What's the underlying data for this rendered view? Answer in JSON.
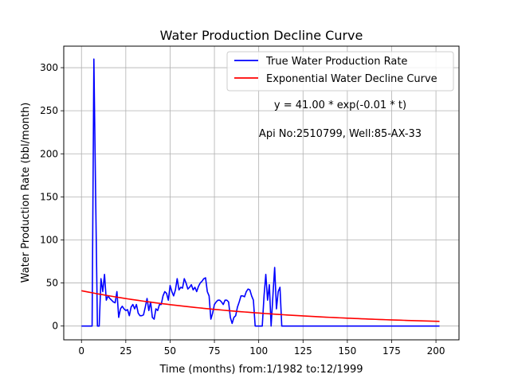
{
  "chart_data": {
    "type": "line",
    "title": "Water Production Decline Curve",
    "xlabel": "Time (months) from:1/1982 to:12/1999",
    "ylabel": "Water Production Rate (bbl/month)",
    "xlim": [
      -10,
      213
    ],
    "ylim": [
      -16,
      325
    ],
    "xticks": [
      0,
      25,
      50,
      75,
      100,
      125,
      150,
      175,
      200
    ],
    "yticks": [
      0,
      50,
      100,
      150,
      200,
      250,
      300
    ],
    "grid": true,
    "legend_position": "top-right",
    "annotations": [
      "y = 41.00 * exp(-0.01 * t)",
      "Api No:2510799, Well:85-AX-33"
    ],
    "series": [
      {
        "name": "True Water Production Rate",
        "color": "#0000ff",
        "x": [
          0,
          1,
          2,
          3,
          4,
          5,
          6,
          7,
          8,
          9,
          10,
          11,
          12,
          13,
          14,
          15,
          16,
          17,
          18,
          19,
          20,
          21,
          22,
          23,
          24,
          25,
          26,
          27,
          28,
          29,
          30,
          31,
          32,
          33,
          34,
          35,
          36,
          37,
          38,
          39,
          40,
          41,
          42,
          43,
          44,
          45,
          46,
          47,
          48,
          49,
          50,
          51,
          52,
          53,
          54,
          55,
          56,
          57,
          58,
          59,
          60,
          61,
          62,
          63,
          64,
          65,
          66,
          67,
          68,
          69,
          70,
          71,
          72,
          73,
          74,
          75,
          76,
          77,
          78,
          79,
          80,
          81,
          82,
          83,
          84,
          85,
          86,
          87,
          88,
          89,
          90,
          91,
          92,
          93,
          94,
          95,
          96,
          97,
          98,
          99,
          100,
          101,
          102,
          103,
          104,
          105,
          106,
          107,
          108,
          109,
          110,
          111,
          112,
          113,
          114,
          115,
          202
        ],
        "y": [
          0,
          0,
          0,
          0,
          0,
          0,
          0,
          310,
          150,
          0,
          0,
          55,
          40,
          60,
          30,
          35,
          32,
          30,
          28,
          27,
          40,
          10,
          20,
          23,
          20,
          18,
          19,
          12,
          22,
          25,
          20,
          25,
          15,
          12,
          12,
          13,
          22,
          32,
          18,
          28,
          10,
          8,
          20,
          18,
          25,
          25,
          35,
          40,
          38,
          30,
          47,
          40,
          35,
          42,
          55,
          42,
          45,
          44,
          55,
          50,
          43,
          45,
          48,
          42,
          45,
          40,
          46,
          50,
          52,
          55,
          56,
          40,
          35,
          8,
          15,
          25,
          28,
          30,
          30,
          28,
          25,
          30,
          30,
          28,
          10,
          3,
          10,
          12,
          22,
          28,
          35,
          35,
          34,
          40,
          43,
          42,
          35,
          30,
          0,
          0,
          0,
          0,
          0,
          35,
          60,
          30,
          48,
          0,
          35,
          68,
          20,
          40,
          45,
          0,
          0,
          0,
          0
        ]
      },
      {
        "name": "Exponential Water Decline Curve",
        "color": "#ff0000",
        "function": {
          "a": 41.0,
          "b": -0.01
        },
        "x_range": [
          0,
          202
        ]
      }
    ]
  }
}
